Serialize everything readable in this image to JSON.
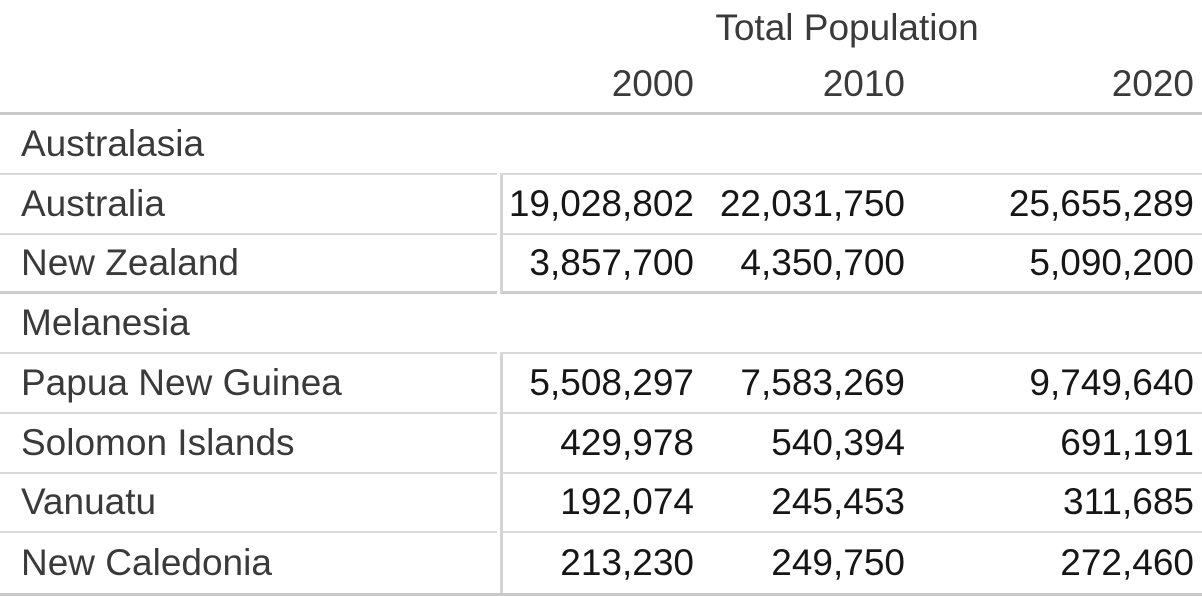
{
  "table": {
    "header": {
      "title": "Total Population",
      "years": [
        "2000",
        "2010",
        "2020"
      ]
    },
    "groups": [
      {
        "name": "Australasia",
        "rows": [
          {
            "label": "Australia",
            "values": [
              "19,028,802",
              "22,031,750",
              "25,655,289"
            ]
          },
          {
            "label": "New Zealand",
            "values": [
              "3,857,700",
              "4,350,700",
              "5,090,200"
            ]
          }
        ]
      },
      {
        "name": "Melanesia",
        "rows": [
          {
            "label": "Papua New Guinea",
            "values": [
              "5,508,297",
              "7,583,269",
              "9,749,640"
            ]
          },
          {
            "label": "Solomon Islands",
            "values": [
              "429,978",
              "540,394",
              "691,191"
            ]
          },
          {
            "label": "Vanuatu",
            "values": [
              "192,074",
              "245,453",
              "311,685"
            ]
          },
          {
            "label": "New Caledonia",
            "values": [
              "213,230",
              "249,750",
              "272,460"
            ]
          }
        ]
      }
    ],
    "colors": {
      "rule": "#c9c9c9",
      "row_separator": "#d9d9d9",
      "section_separator": "#cdcdcd",
      "vertical_divider": "#d4d4d4",
      "label_text": "#3a3a3a",
      "number_text": "#161616",
      "background": "#ffffff"
    }
  },
  "chart_data": {
    "type": "table",
    "title": "Total Population",
    "categories": [
      "2000",
      "2010",
      "2020"
    ],
    "series": [
      {
        "name": "Australia",
        "group": "Australasia",
        "values": [
          19028802,
          22031750,
          25655289
        ]
      },
      {
        "name": "New Zealand",
        "group": "Australasia",
        "values": [
          3857700,
          4350700,
          5090200
        ]
      },
      {
        "name": "Papua New Guinea",
        "group": "Melanesia",
        "values": [
          5508297,
          7583269,
          9749640
        ]
      },
      {
        "name": "Solomon Islands",
        "group": "Melanesia",
        "values": [
          429978,
          540394,
          691191
        ]
      },
      {
        "name": "Vanuatu",
        "group": "Melanesia",
        "values": [
          192074,
          245453,
          311685
        ]
      },
      {
        "name": "New Caledonia",
        "group": "Melanesia",
        "values": [
          213230,
          249750,
          272460
        ]
      }
    ],
    "layout": {
      "grid": "horizontal-rules",
      "legend": "none",
      "group_header_rows": [
        "Australasia",
        "Melanesia"
      ]
    }
  }
}
